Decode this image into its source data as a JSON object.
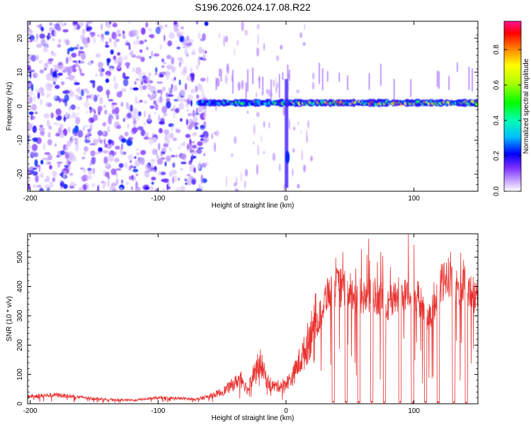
{
  "title": "S196.2026.024.17.08.R22",
  "colors": {
    "snr_line": "#e8312e",
    "axis": "#000000",
    "noise": "#8a3cff"
  },
  "chart_data": [
    {
      "type": "heatmap",
      "xlabel": "Height of straight line (km)",
      "ylabel": "Frequency (Hz)",
      "xlim": [
        -202,
        150
      ],
      "ylim": [
        -25,
        25
      ],
      "xticks": [
        -200,
        -100,
        0,
        100
      ],
      "yticks": [
        -20,
        -10,
        0,
        10,
        20
      ],
      "colorbar": {
        "label": "Normalized spectral amplitude",
        "range": [
          0,
          0.96
        ],
        "ticks": [
          0.0,
          0.2,
          0.4,
          0.6,
          0.8
        ],
        "tick_labels": [
          "0.0",
          "0.2",
          "0.4",
          "0.6",
          "0.8"
        ]
      },
      "description_regions": [
        {
          "x_range": [
            -202,
            -68
          ],
          "kind": "broadband noise",
          "amplitude": 0.15
        },
        {
          "x_range": [
            -68,
            150
          ],
          "kind": "narrow line near 0 Hz",
          "frequency": 1,
          "amplitude_peak": 0.9
        }
      ]
    },
    {
      "type": "line",
      "xlabel": "Height of straight line (km)",
      "ylabel": "SNR (10 * v/v)",
      "xlim": [
        -202,
        150
      ],
      "ylim": [
        0,
        580
      ],
      "xticks": [
        -200,
        -100,
        0,
        100
      ],
      "yticks": [
        0,
        100,
        200,
        300,
        400,
        500
      ],
      "x": [
        -202,
        -180,
        -160,
        -140,
        -120,
        -100,
        -80,
        -70,
        -60,
        -50,
        -40,
        -35,
        -30,
        -25,
        -20,
        -15,
        -10,
        -5,
        0,
        5,
        10,
        15,
        20,
        25,
        28,
        32,
        40,
        50,
        60,
        70,
        80,
        90,
        100,
        105,
        110,
        115,
        120,
        125,
        130,
        135,
        140,
        150
      ],
      "values": [
        25,
        30,
        22,
        15,
        12,
        20,
        18,
        15,
        25,
        40,
        70,
        90,
        45,
        110,
        140,
        80,
        60,
        60,
        70,
        90,
        140,
        180,
        250,
        280,
        320,
        380,
        400,
        380,
        360,
        370,
        340,
        380,
        370,
        350,
        280,
        320,
        400,
        420,
        450,
        380,
        400,
        360
      ],
      "dropouts": [
        [
          36,
          38
        ],
        [
          46,
          48
        ],
        [
          56,
          58
        ],
        [
          66,
          68
        ],
        [
          76,
          78
        ],
        [
          88,
          90
        ],
        [
          98,
          100
        ],
        [
          108,
          110
        ],
        [
          118,
          120
        ],
        [
          130,
          132
        ],
        [
          140,
          142
        ]
      ]
    }
  ]
}
